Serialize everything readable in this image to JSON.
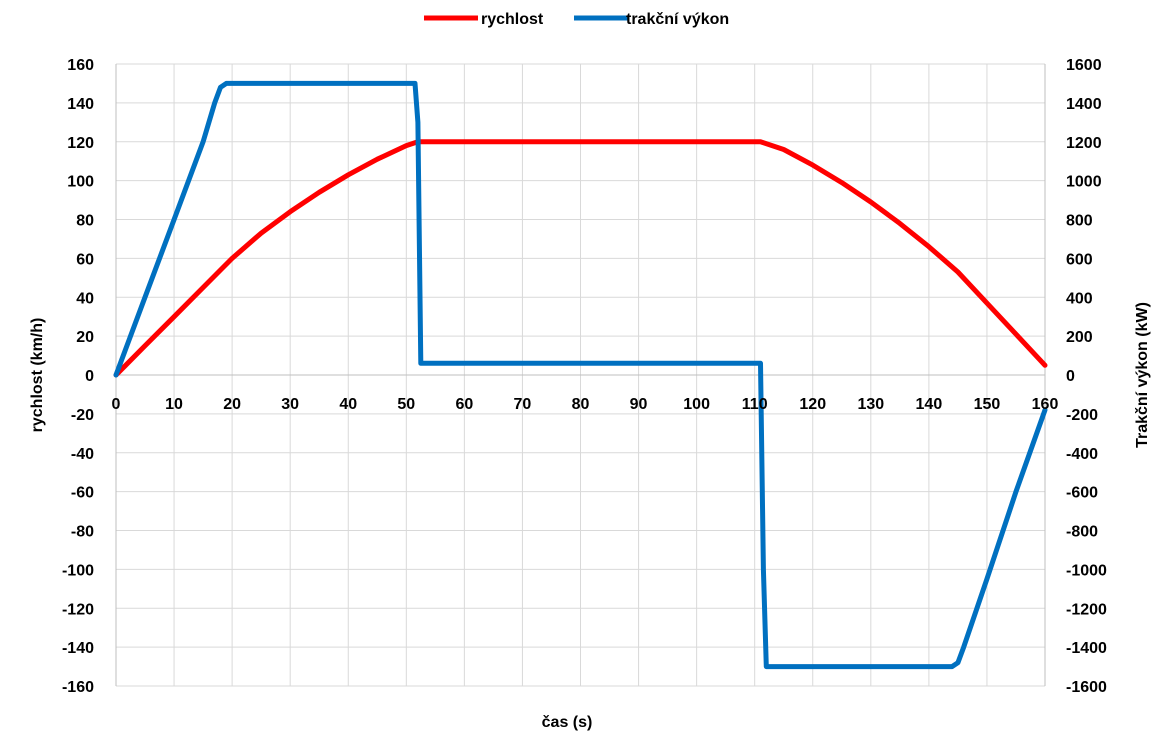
{
  "chart_data": {
    "type": "line",
    "title": "",
    "xlabel": "čas (s)",
    "ylabel": "rychlost (km/h)",
    "y2label": "Trakční výkon (kW)",
    "xlim": [
      0,
      160
    ],
    "ylim": [
      -160,
      160
    ],
    "y2lim": [
      -1600,
      1600
    ],
    "x_ticks": [
      0,
      10,
      20,
      30,
      40,
      50,
      60,
      70,
      80,
      90,
      100,
      110,
      120,
      130,
      140,
      150,
      160
    ],
    "y_ticks": [
      160,
      140,
      120,
      100,
      80,
      60,
      40,
      20,
      0,
      -20,
      -40,
      -60,
      -80,
      -100,
      -120,
      -140,
      -160
    ],
    "y2_ticks": [
      1600,
      1400,
      1200,
      1000,
      800,
      600,
      400,
      200,
      0,
      -200,
      -400,
      -600,
      -800,
      -1000,
      -1200,
      -1400,
      -1600
    ],
    "grid": true,
    "legend_position": "top",
    "series": [
      {
        "name": "rychlost",
        "axis": "left",
        "color": "#ff0000",
        "x": [
          0,
          5,
          10,
          15,
          18,
          20,
          25,
          30,
          35,
          40,
          45,
          50,
          52,
          60,
          80,
          100,
          111,
          115,
          120,
          125,
          130,
          135,
          140,
          145,
          150,
          155,
          160
        ],
        "y": [
          0,
          15,
          30,
          45,
          54,
          60,
          73,
          84,
          94,
          103,
          111,
          118,
          120,
          120,
          120,
          120,
          120,
          116,
          108,
          99,
          89,
          78,
          66,
          53,
          37,
          21,
          5
        ]
      },
      {
        "name": "trakční výkon",
        "axis": "right",
        "color": "#0070c0",
        "x": [
          0,
          5,
          10,
          15,
          17,
          18,
          19,
          25,
          40,
          51.5,
          52,
          52.5,
          60,
          80,
          100,
          111,
          111.5,
          112,
          120,
          130,
          140,
          144,
          145,
          146,
          150,
          155,
          160
        ],
        "y": [
          0,
          400,
          800,
          1200,
          1400,
          1480,
          1500,
          1500,
          1500,
          1500,
          1300,
          60,
          60,
          60,
          60,
          60,
          -1000,
          -1500,
          -1500,
          -1500,
          -1500,
          -1500,
          -1480,
          -1400,
          -1050,
          -600,
          -180
        ]
      }
    ]
  }
}
